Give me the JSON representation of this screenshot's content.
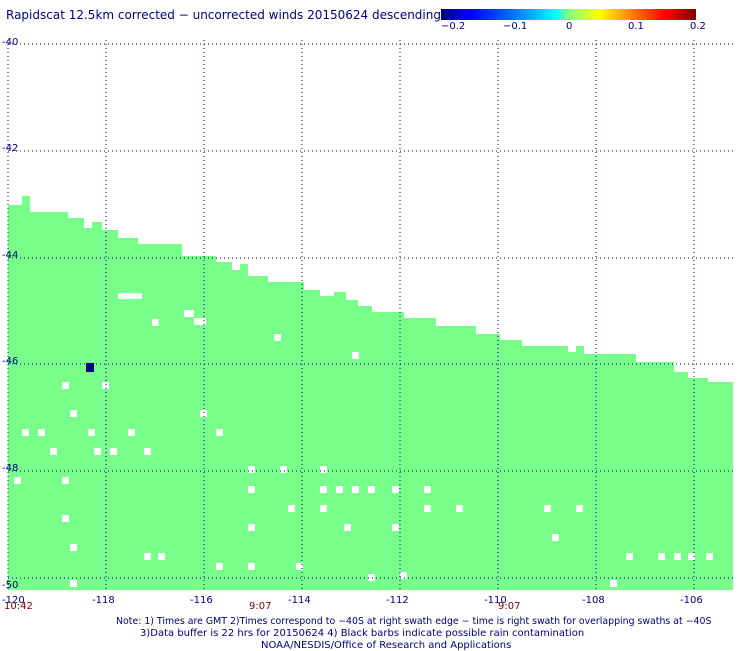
{
  "title": "Rapidscat 12.5km corrected − uncorrected winds 20150624 descending",
  "colorbar": {
    "ticks": [
      "−0.2",
      "−0.1",
      "0",
      "0.1",
      "0.2"
    ],
    "range": [
      -0.2,
      0.2
    ]
  },
  "axes": {
    "y_ticks": [
      "-40",
      "-42",
      "-44",
      "-46",
      "-48",
      "-50"
    ],
    "x_ticks": [
      "-120",
      "-118",
      "-116",
      "-114",
      "-112",
      "-110",
      "-108",
      "-106"
    ]
  },
  "times": {
    "left": "10:42",
    "mid1": "9:07",
    "mid2": "9:07"
  },
  "notes": {
    "line1": "Note: 1) Times are GMT 2)Times correspond to −40S at right swath edge − time is right swath for overlapping swaths at −40S",
    "line2": "3)Data buffer is 22 hrs for 20150624 4) Black barbs indicate possible rain contamination",
    "line3": "NOAA/NESDIS/Office of Research and Applications"
  },
  "colors": {
    "swath": "#77ff8a",
    "grid": "#00007f",
    "anomaly": "#00007f",
    "text": "#000080"
  }
}
